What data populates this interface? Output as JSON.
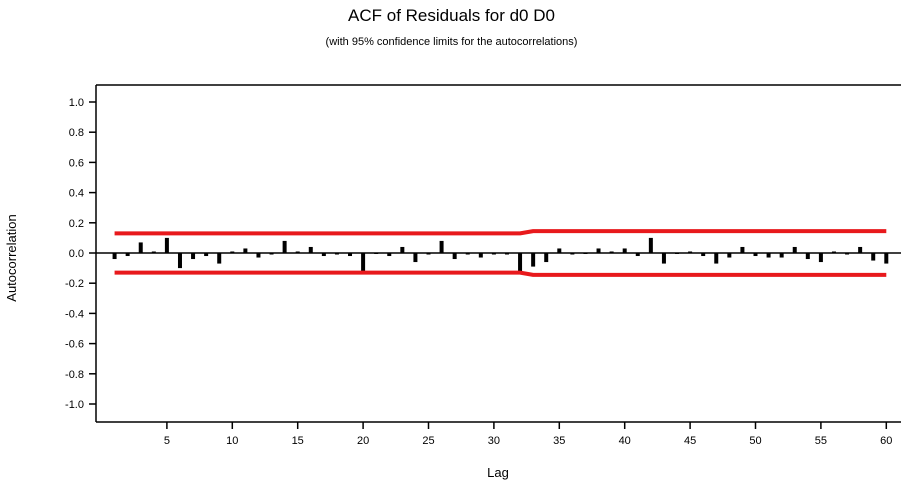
{
  "chart_data": {
    "type": "bar",
    "title": "ACF of Residuals for d0 D0",
    "subtitle": "(with 95% confidence limits for the autocorrelations)",
    "xlabel": "Lag",
    "ylabel": "Autocorrelation",
    "xlim": [
      0,
      61
    ],
    "ylim": [
      -1.1,
      1.1
    ],
    "x_ticks": [
      5,
      10,
      15,
      20,
      25,
      30,
      35,
      40,
      45,
      50,
      55,
      60
    ],
    "y_ticks": [
      "1.0",
      "0.8",
      "0.6",
      "0.4",
      "0.2",
      "0.0",
      "-0.2",
      "-0.4",
      "-0.6",
      "-0.8",
      "-1.0"
    ],
    "grid": false,
    "lags": [
      1,
      2,
      3,
      4,
      5,
      6,
      7,
      8,
      9,
      10,
      11,
      12,
      13,
      14,
      15,
      16,
      17,
      18,
      19,
      20,
      21,
      22,
      23,
      24,
      25,
      26,
      27,
      28,
      29,
      30,
      31,
      32,
      33,
      34,
      35,
      36,
      37,
      38,
      39,
      40,
      41,
      42,
      43,
      44,
      45,
      46,
      47,
      48,
      49,
      50,
      51,
      52,
      53,
      54,
      55,
      56,
      57,
      58,
      59,
      60
    ],
    "values": [
      -0.04,
      -0.02,
      0.07,
      0.01,
      0.1,
      -0.1,
      -0.04,
      -0.02,
      -0.07,
      0.01,
      0.03,
      -0.03,
      -0.01,
      0.08,
      0.01,
      0.04,
      -0.02,
      -0.01,
      -0.02,
      -0.13,
      0.0,
      -0.02,
      0.04,
      -0.06,
      -0.01,
      0.08,
      -0.04,
      -0.01,
      -0.03,
      -0.01,
      -0.01,
      -0.12,
      -0.09,
      -0.06,
      0.03,
      -0.01,
      0.0,
      0.03,
      0.01,
      0.03,
      -0.02,
      0.1,
      -0.07,
      0.0,
      0.01,
      -0.02,
      -0.07,
      -0.03,
      0.04,
      -0.02,
      -0.03,
      -0.03,
      0.04,
      -0.04,
      -0.06,
      0.01,
      -0.01,
      0.04,
      -0.05,
      -0.07
    ],
    "upper_limit": {
      "lags": [
        1,
        32,
        33,
        60
      ],
      "values": [
        0.13,
        0.13,
        0.145,
        0.145
      ]
    },
    "lower_limit": {
      "lags": [
        1,
        32,
        33,
        60
      ],
      "values": [
        -0.13,
        -0.13,
        -0.145,
        -0.145
      ]
    },
    "colors": {
      "bars": "#000000",
      "limits": "#e8191c",
      "axes": "#000000"
    }
  }
}
